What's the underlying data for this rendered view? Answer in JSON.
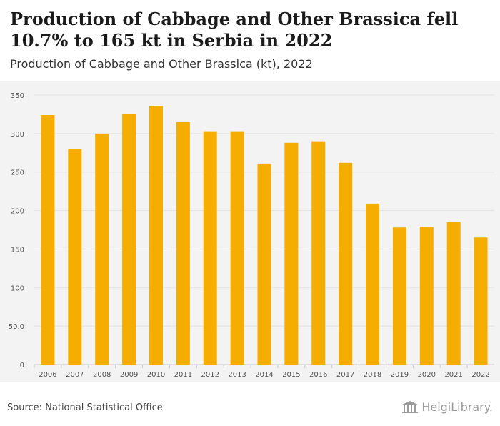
{
  "header": {
    "title": "Production of Cabbage and Other Brassica fell 10.7% to 165 kt in Serbia in 2022",
    "subtitle": "Production of Cabbage and Other Brassica (kt), 2022"
  },
  "footer": {
    "source": "Source: National Statistical Office",
    "logo_text": "HelgiLibrary."
  },
  "colors": {
    "bar": "#f5ae00",
    "background": "#f3f3f3",
    "grid": "#e2e2e2"
  },
  "chart_data": {
    "type": "bar",
    "categories": [
      "2006",
      "2007",
      "2008",
      "2009",
      "2010",
      "2011",
      "2012",
      "2013",
      "2014",
      "2015",
      "2016",
      "2017",
      "2018",
      "2019",
      "2020",
      "2021",
      "2022"
    ],
    "values": [
      324,
      280,
      300,
      325,
      336,
      315,
      303,
      303,
      261,
      288,
      290,
      262,
      209,
      178,
      179,
      185,
      165
    ],
    "ylim": [
      0,
      350
    ],
    "yticks": [
      0,
      50,
      100,
      150,
      200,
      250,
      300,
      350
    ],
    "ytick_labels": [
      "0",
      "50.0",
      "100",
      "150",
      "200",
      "250",
      "300",
      "350"
    ],
    "grid": true,
    "legend": "none"
  }
}
